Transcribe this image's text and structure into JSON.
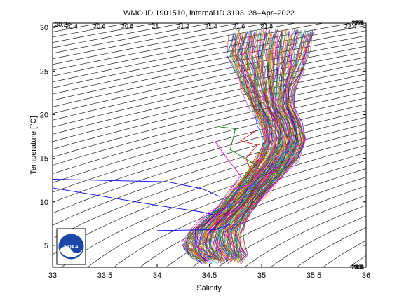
{
  "chart_data": {
    "type": "line",
    "title": "WMO ID 1901510, internal ID 3193, 28–Apr–2022",
    "xlabel": "Salinity",
    "ylabel": "Temperature [°C]",
    "xlim": [
      33,
      36
    ],
    "ylim": [
      2.5,
      30.5
    ],
    "x_ticks": [
      "33",
      "33.5",
      "34",
      "34.5",
      "35",
      "35.5",
      "36"
    ],
    "y_ticks": [
      "5",
      "10",
      "15",
      "20",
      "25",
      "30"
    ],
    "grid": false,
    "density_contours": {
      "levels": [
        20.2,
        20.4,
        20.6,
        20.8,
        21,
        21.2,
        21.4,
        21.6,
        21.8,
        22,
        22.2,
        22.4,
        22.6,
        22.8,
        23,
        23.2,
        23.4,
        23.6,
        23.8,
        24,
        24.2,
        24.4,
        24.6,
        24.8,
        25,
        25.2,
        25.4,
        25.6,
        25.8,
        26,
        26.2,
        26.4,
        26.6,
        26.8,
        27,
        27.2,
        27.4,
        27.6,
        27.8,
        28,
        28.2,
        28.4,
        28.6,
        28.8,
        29
      ],
      "printed_labels": [
        "20.2",
        "20.4",
        "20.6",
        "20.8",
        "21",
        "21.2",
        "21.4",
        "21.6",
        "21.8",
        "22.4",
        "22.8",
        "23.2",
        "23.6",
        "24",
        "24.4",
        "24.8",
        "25.2",
        "25.6",
        "26",
        "26.4",
        "26.8",
        "27",
        "27.4",
        "27.8",
        "28",
        "28.2",
        "28.4",
        "28.6"
      ],
      "color": "#000000"
    },
    "envelope": {
      "description_free": true,
      "temperature": [
        29.5,
        27,
        25,
        23,
        21,
        19,
        17,
        15,
        13,
        11,
        9.5,
        8,
        6.5,
        5,
        4,
        3.2
      ],
      "salinity_low": [
        34.72,
        34.68,
        34.75,
        34.82,
        34.9,
        34.98,
        35.02,
        34.95,
        34.83,
        34.7,
        34.6,
        34.45,
        34.3,
        34.25,
        34.3,
        34.42
      ],
      "salinity_high": [
        35.5,
        35.45,
        35.4,
        35.32,
        35.3,
        35.38,
        35.42,
        35.35,
        35.2,
        35.05,
        34.95,
        34.85,
        34.8,
        34.82,
        34.85,
        34.8
      ]
    },
    "series": [
      {
        "color": "#0000ff",
        "x": [
          33.0,
          34.1,
          34.43,
          34.6
        ],
        "y": [
          12.6,
          12.3,
          11.5,
          10.6
        ]
      },
      {
        "color": "#0000ff",
        "x": [
          33.0,
          33.4,
          34.0,
          34.4,
          34.55
        ],
        "y": [
          11.6,
          10.8,
          9.6,
          8.9,
          8.5
        ]
      },
      {
        "color": "#0000ff",
        "x": [
          34.0,
          34.55,
          34.7
        ],
        "y": [
          6.7,
          6.8,
          7.4
        ]
      },
      {
        "color": "#ff0000",
        "x": [
          34.9,
          34.85,
          34.96,
          34.8,
          34.95
        ],
        "y": [
          13.5,
          15.0,
          16.5,
          17.0,
          18.2
        ]
      },
      {
        "color": "#008000",
        "x": [
          34.6,
          34.75,
          34.7,
          34.95
        ],
        "y": [
          18.6,
          18.4,
          16.0,
          14.2
        ]
      },
      {
        "color": "#ff00ff",
        "x": [
          34.55,
          34.68,
          34.8,
          34.7,
          34.9
        ],
        "y": [
          17.0,
          14.8,
          13.0,
          11.4,
          12.0
        ]
      }
    ]
  },
  "logo": {
    "text": "NOAA"
  }
}
